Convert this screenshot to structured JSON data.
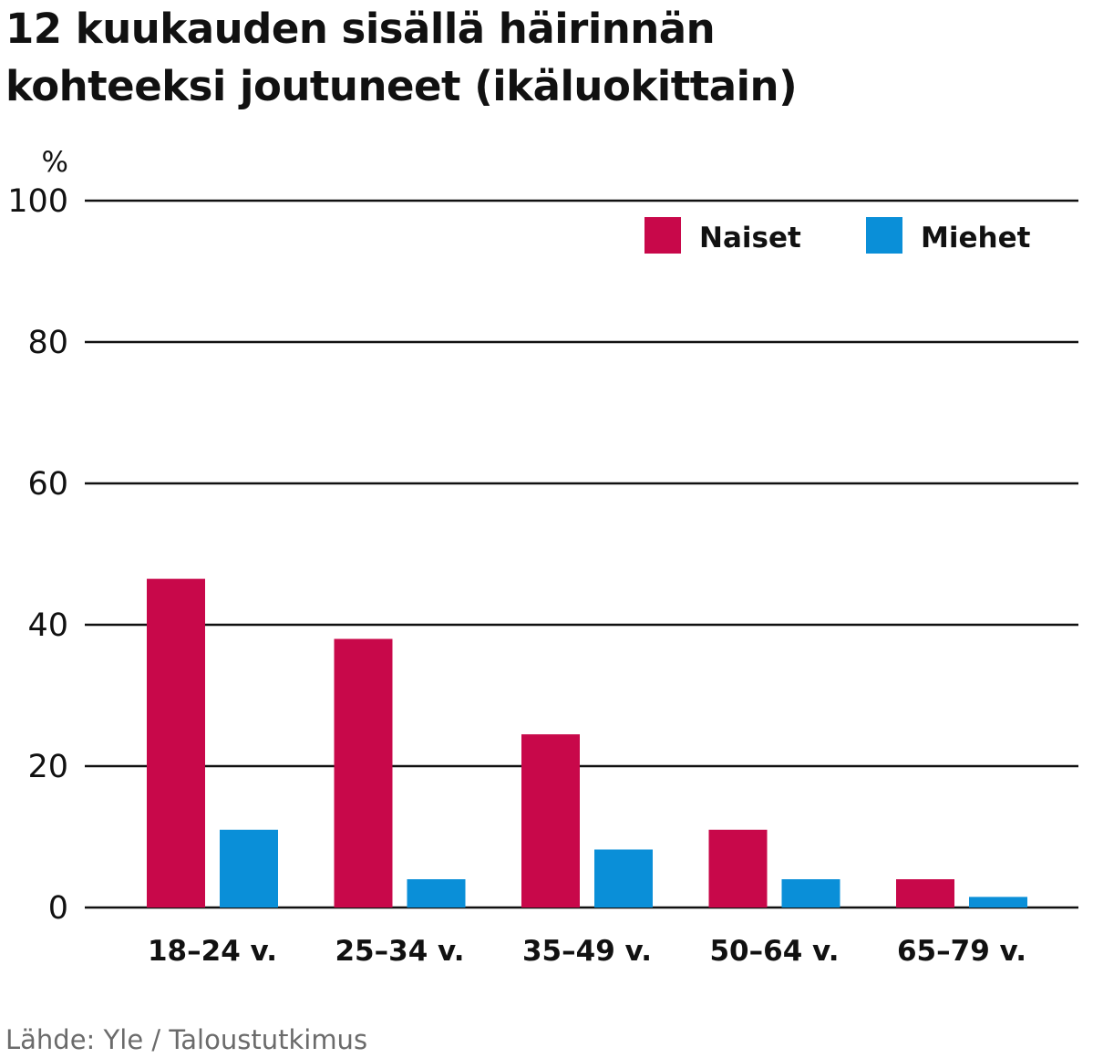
{
  "title_line1": "12 kuukauden sisällä häirinnän",
  "title_line2": "kohteeksi joutuneet (ikäluokittain)",
  "source": "Lähde: Yle / Taloustutkimus",
  "chart_data": {
    "type": "bar",
    "title": "12 kuukauden sisällä häirinnän kohteeksi joutuneet (ikäluokittain)",
    "ylabel": "%",
    "xlabel": "",
    "ylim": [
      0,
      100
    ],
    "yticks": [
      0,
      20,
      40,
      60,
      80,
      100
    ],
    "grid": true,
    "legend_position": "top-right",
    "categories": [
      "18–24 v.",
      "25–34 v.",
      "35–49 v.",
      "50–64 v.",
      "65–79 v."
    ],
    "series": [
      {
        "name": "Naiset",
        "color": "#c8084a",
        "values": [
          46.5,
          38,
          24.5,
          11,
          4
        ]
      },
      {
        "name": "Miehet",
        "color": "#0a8fd8",
        "values": [
          11,
          4,
          8.2,
          4,
          1.5
        ]
      }
    ]
  }
}
